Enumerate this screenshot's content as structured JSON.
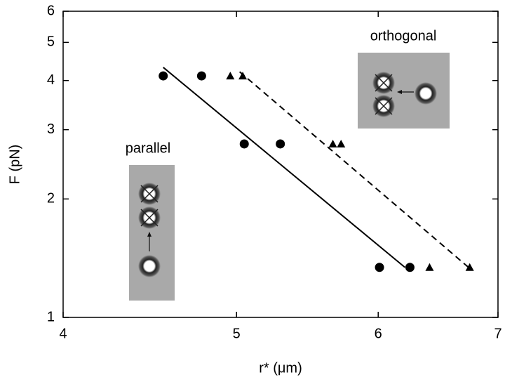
{
  "chart_data": {
    "type": "scatter",
    "xlabel": "r* (μm)",
    "ylabel": "F (pN)",
    "xscale": "log",
    "yscale": "log",
    "xlim": [
      4,
      7
    ],
    "ylim": [
      1,
      6
    ],
    "xticks": [
      4,
      5,
      6,
      7
    ],
    "yticks": [
      1,
      2,
      3,
      4,
      5,
      6
    ],
    "annotations": [
      "parallel",
      "orthogonal"
    ],
    "series": [
      {
        "type": "scatter",
        "marker": "circle",
        "color": "#000000",
        "x": [
          4.55,
          4.78,
          5.05,
          5.29,
          6.01,
          6.25
        ],
        "values": [
          4.11,
          4.11,
          2.76,
          2.76,
          1.34,
          1.34
        ]
      },
      {
        "type": "scatter",
        "marker": "triangle",
        "color": "#000000",
        "x": [
          4.96,
          5.04,
          5.66,
          5.72,
          6.41,
          6.75
        ],
        "values": [
          4.11,
          4.11,
          2.76,
          2.76,
          1.34,
          1.34
        ]
      },
      {
        "type": "line",
        "line_style": "solid",
        "color": "#000000",
        "x": [
          4.55,
          6.21
        ],
        "values": [
          4.32,
          1.34
        ]
      },
      {
        "type": "line",
        "line_style": "dashed",
        "color": "#000000",
        "x": [
          5.02,
          6.74
        ],
        "values": [
          4.21,
          1.34
        ]
      }
    ]
  }
}
